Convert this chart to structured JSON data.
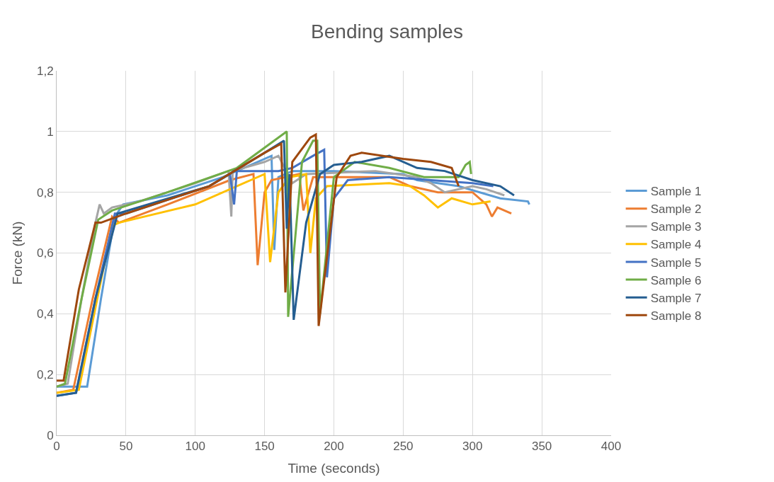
{
  "chart_data": {
    "type": "line",
    "title": "Bending samples",
    "xlabel": "Time (seconds)",
    "ylabel": "Force (kN)",
    "xlim": [
      0,
      400
    ],
    "xticks": [
      0,
      50,
      100,
      150,
      200,
      250,
      300,
      350,
      400
    ],
    "ylim": [
      0,
      1.2
    ],
    "yticks": [
      {
        "value": 0,
        "label": "0"
      },
      {
        "value": 0.2,
        "label": "0,2"
      },
      {
        "value": 0.4,
        "label": "0,4"
      },
      {
        "value": 0.6,
        "label": "0,6"
      },
      {
        "value": 0.8,
        "label": "0,8"
      },
      {
        "value": 1,
        "label": "1"
      },
      {
        "value": 1.2,
        "label": "1,2"
      }
    ],
    "grid": true,
    "legend": "right",
    "marker": "none",
    "line_style": "solid",
    "series": [
      {
        "name": "Sample 1",
        "color": "#5b9bd5",
        "x": [
          0,
          22,
          32,
          42,
          48,
          80,
          120,
          155,
          157,
          160,
          170,
          200,
          250,
          260,
          290,
          320,
          340,
          341
        ],
        "values": [
          0.16,
          0.16,
          0.45,
          0.72,
          0.76,
          0.79,
          0.85,
          0.92,
          0.61,
          0.85,
          0.87,
          0.87,
          0.86,
          0.84,
          0.82,
          0.78,
          0.77,
          0.76
        ]
      },
      {
        "name": "Sample 2",
        "color": "#ed7d31",
        "x": [
          0,
          12,
          26,
          40,
          45,
          80,
          125,
          142,
          145,
          150,
          155,
          175,
          178,
          185,
          240,
          255,
          275,
          300,
          310,
          314,
          318,
          328
        ],
        "values": [
          0.14,
          0.15,
          0.45,
          0.72,
          0.7,
          0.76,
          0.84,
          0.86,
          0.56,
          0.8,
          0.84,
          0.86,
          0.74,
          0.85,
          0.85,
          0.82,
          0.8,
          0.8,
          0.76,
          0.72,
          0.75,
          0.73
        ]
      },
      {
        "name": "Sample 3",
        "color": "#a5a5a5",
        "x": [
          0,
          8,
          18,
          28,
          31,
          34,
          40,
          60,
          100,
          124,
          126,
          127,
          150,
          160,
          170,
          180,
          230,
          260,
          270,
          280,
          300,
          310,
          323
        ],
        "values": [
          0.16,
          0.17,
          0.45,
          0.7,
          0.76,
          0.73,
          0.75,
          0.77,
          0.83,
          0.87,
          0.72,
          0.87,
          0.9,
          0.92,
          0.83,
          0.86,
          0.87,
          0.85,
          0.83,
          0.8,
          0.82,
          0.81,
          0.79
        ]
      },
      {
        "name": "Sample 4",
        "color": "#ffc000",
        "x": [
          0,
          16,
          28,
          40,
          45,
          100,
          140,
          150,
          154,
          160,
          168,
          180,
          183,
          187,
          195,
          240,
          255,
          265,
          275,
          285,
          300,
          313
        ],
        "values": [
          0.14,
          0.15,
          0.42,
          0.69,
          0.7,
          0.76,
          0.84,
          0.86,
          0.57,
          0.8,
          0.85,
          0.86,
          0.6,
          0.78,
          0.82,
          0.83,
          0.82,
          0.79,
          0.75,
          0.78,
          0.76,
          0.77
        ]
      },
      {
        "name": "Sample 5",
        "color": "#4472c4",
        "x": [
          0,
          14,
          28,
          42,
          50,
          110,
          125,
          128,
          130,
          160,
          170,
          185,
          193,
          195,
          200,
          210,
          240,
          270,
          300,
          315
        ],
        "values": [
          0.13,
          0.14,
          0.45,
          0.73,
          0.73,
          0.82,
          0.86,
          0.76,
          0.87,
          0.87,
          0.88,
          0.92,
          0.94,
          0.52,
          0.78,
          0.84,
          0.85,
          0.84,
          0.83,
          0.82
        ]
      },
      {
        "name": "Sample 6",
        "color": "#70ad47",
        "x": [
          0,
          6,
          18,
          30,
          40,
          80,
          130,
          166,
          167,
          177,
          185,
          188,
          190,
          200,
          215,
          240,
          265,
          290,
          295,
          298,
          299
        ],
        "values": [
          0.16,
          0.17,
          0.45,
          0.71,
          0.74,
          0.8,
          0.88,
          1.0,
          0.39,
          0.9,
          0.97,
          0.97,
          0.4,
          0.85,
          0.9,
          0.88,
          0.85,
          0.85,
          0.89,
          0.9,
          0.86
        ]
      },
      {
        "name": "Sample 7",
        "color": "#255e91",
        "x": [
          0,
          14,
          28,
          44,
          110,
          150,
          164,
          166,
          168,
          171,
          180,
          190,
          200,
          220,
          240,
          260,
          280,
          300,
          320,
          330
        ],
        "values": [
          0.13,
          0.14,
          0.45,
          0.73,
          0.82,
          0.93,
          0.97,
          0.68,
          0.86,
          0.38,
          0.7,
          0.86,
          0.89,
          0.9,
          0.92,
          0.88,
          0.87,
          0.84,
          0.82,
          0.79
        ]
      },
      {
        "name": "Sample 8",
        "color": "#9e480e",
        "x": [
          0,
          5,
          16,
          28,
          32,
          50,
          110,
          150,
          162,
          165,
          170,
          183,
          187,
          189,
          202,
          212,
          220,
          250,
          270,
          285,
          290
        ],
        "values": [
          0.18,
          0.18,
          0.48,
          0.7,
          0.7,
          0.73,
          0.82,
          0.93,
          0.96,
          0.47,
          0.9,
          0.98,
          0.99,
          0.36,
          0.85,
          0.92,
          0.93,
          0.91,
          0.9,
          0.88,
          0.82
        ]
      }
    ]
  }
}
